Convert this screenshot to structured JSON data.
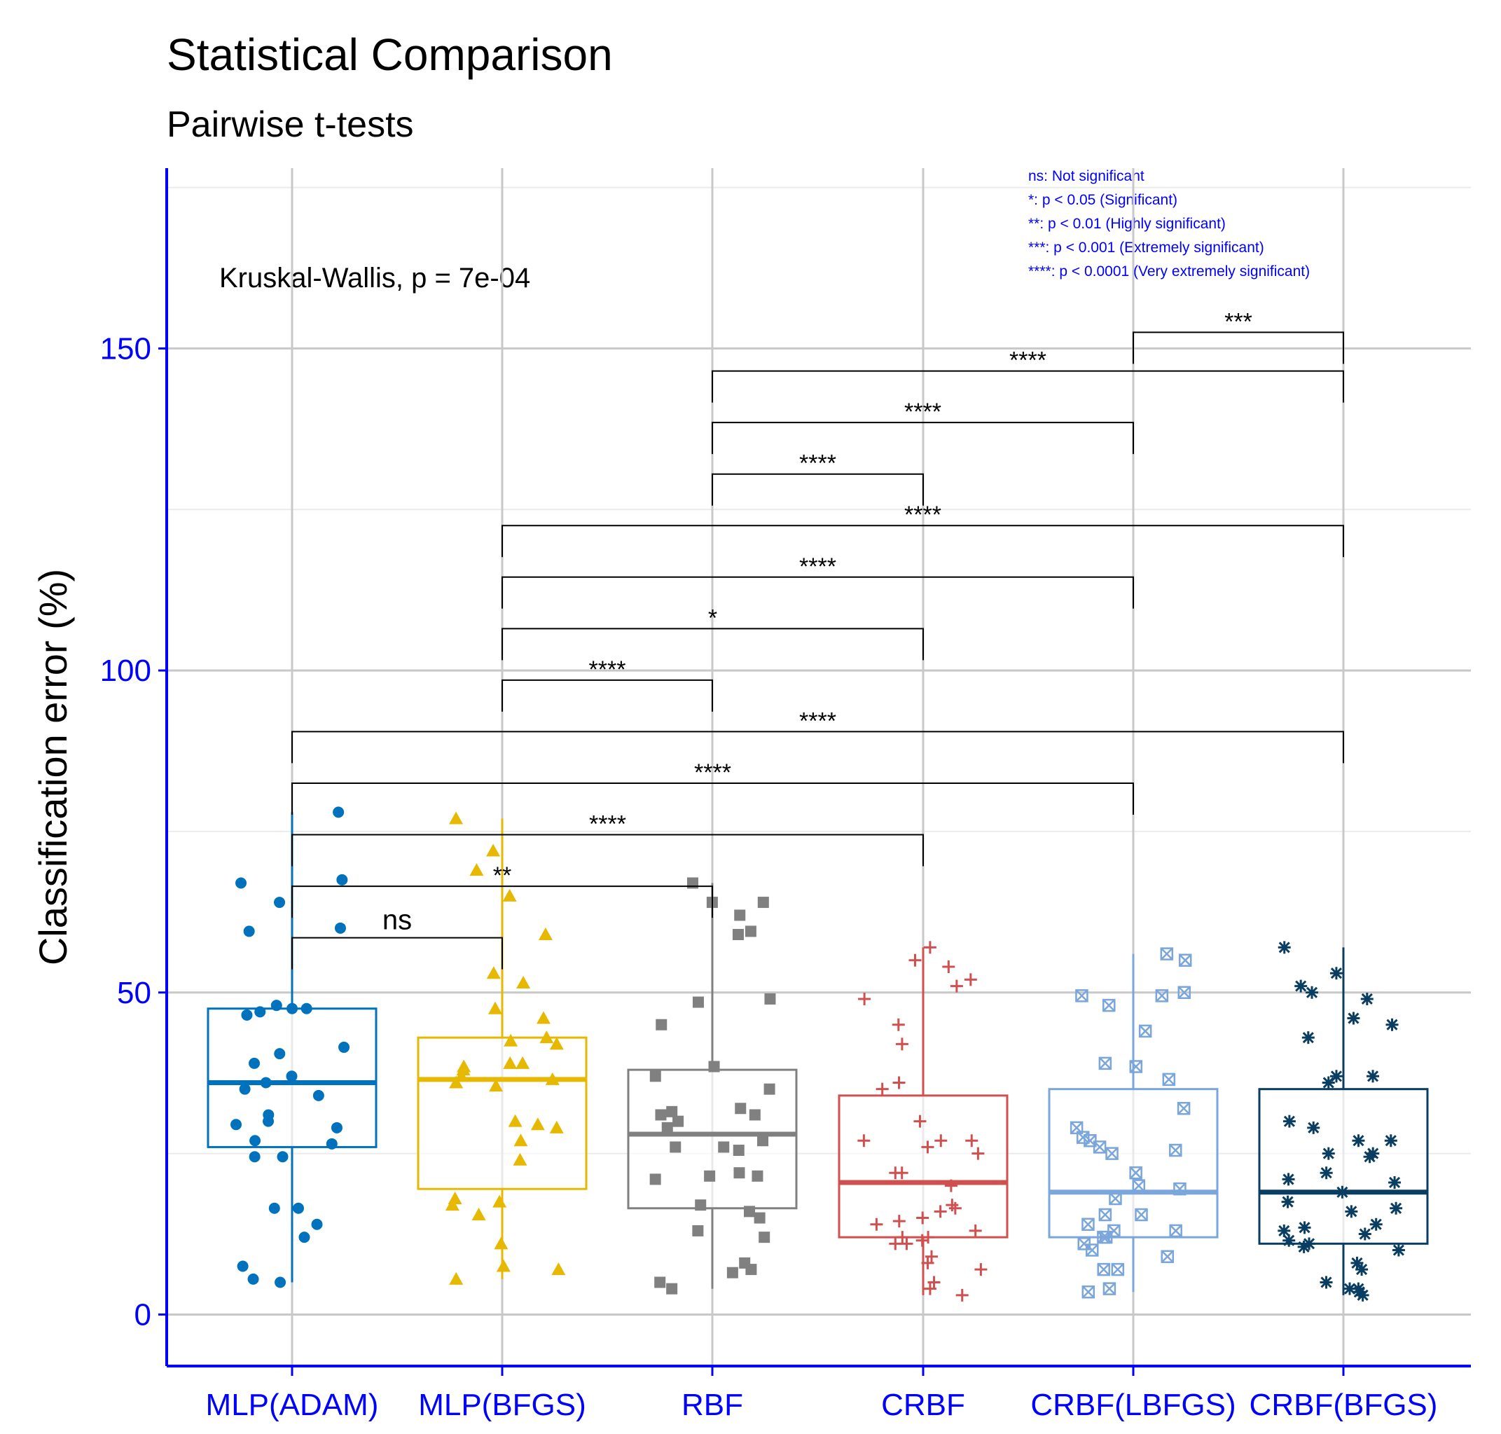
{
  "chart_data": {
    "type": "box",
    "title": "Statistical Comparison",
    "subtitle": "Pairwise t-tests",
    "ylabel": "Classification error (%)",
    "xlabel": "",
    "ylim": [
      -8,
      178
    ],
    "yticks": [
      0,
      50,
      100,
      150
    ],
    "grid": true,
    "annotation": "Kruskal-Wallis, p = 7e-04",
    "legend_lines": [
      "ns: Not significant",
      "*: p < 0.05 (Significant)",
      "**: p < 0.01 (Highly significant)",
      "***: p < 0.001 (Extremely significant)",
      "****: p < 0.0001 (Very extremely significant)"
    ],
    "colors": {
      "axis": "#0000ff",
      "grid_major": "#c8c8c8",
      "grid_minor": "#ebebeb",
      "bracket": "#000000"
    },
    "groups": [
      {
        "name": "MLP(ADAM)",
        "color": "#0072bd",
        "shape": "circle",
        "box": {
          "q1": 26,
          "median": 36,
          "q3": 47.5,
          "lower": 5,
          "upper": 78
        },
        "points": [
          78,
          67.5,
          67,
          64,
          60,
          59.5,
          48,
          47.5,
          47.5,
          47,
          46.5,
          41.5,
          40.5,
          39,
          37,
          36,
          35,
          34,
          31,
          30,
          29.5,
          29,
          27,
          26.5,
          24.5,
          24.5,
          16.5,
          16.5,
          14,
          12,
          7.5,
          5.5,
          5
        ]
      },
      {
        "name": "MLP(BFGS)",
        "color": "#e6b800",
        "shape": "triangle",
        "box": {
          "q1": 19.5,
          "median": 36.5,
          "q3": 43,
          "lower": 5.5,
          "upper": 77
        },
        "points": [
          77,
          72,
          69,
          65,
          59,
          53,
          51.5,
          47.5,
          46,
          43,
          42.5,
          42,
          39,
          39,
          38.5,
          38,
          37,
          36.5,
          36,
          35.5,
          30,
          29.5,
          29,
          27,
          24,
          18,
          17.5,
          17,
          15.5,
          11,
          7.5,
          7,
          5.5
        ]
      },
      {
        "name": "RBF",
        "color": "#808080",
        "shape": "square",
        "box": {
          "q1": 16.5,
          "median": 28,
          "q3": 38,
          "lower": 4,
          "upper": 67
        },
        "points": [
          67,
          64,
          64,
          62,
          59.5,
          59,
          49,
          48.5,
          45,
          38.5,
          37,
          35,
          32,
          31.5,
          31,
          31,
          30,
          29,
          27,
          26,
          26,
          25.5,
          22,
          21.5,
          21.5,
          21,
          17,
          16,
          15,
          13,
          12,
          8,
          7,
          6.5,
          5,
          4
        ]
      },
      {
        "name": "CRBF",
        "color": "#d05050",
        "shape": "plus",
        "box": {
          "q1": 12,
          "median": 20.5,
          "q3": 34,
          "lower": 3,
          "upper": 57
        },
        "points": [
          57,
          55,
          54,
          52,
          51,
          49,
          45,
          42,
          36,
          35,
          30,
          27,
          27,
          27,
          26,
          25,
          22,
          22,
          20,
          17,
          16.5,
          16,
          15,
          14.5,
          14,
          13,
          12,
          12,
          11.5,
          11,
          11,
          9,
          8,
          7,
          5,
          4,
          3
        ]
      },
      {
        "name": "CRBF(LBFGS)",
        "color": "#7aa6dc",
        "shape": "square-x",
        "box": {
          "q1": 12,
          "median": 19,
          "q3": 35,
          "lower": 3.5,
          "upper": 56
        },
        "points": [
          56,
          55,
          50,
          49.5,
          49.5,
          48,
          44,
          39,
          38.5,
          36.5,
          32,
          29,
          27.5,
          27,
          26,
          25.5,
          25,
          22,
          20,
          19.5,
          18,
          15.5,
          15.5,
          14,
          13,
          13,
          12,
          12,
          11,
          10,
          9,
          7,
          7,
          4,
          3.5
        ]
      },
      {
        "name": "CRBF(BFGS)",
        "color": "#0a3d62",
        "shape": "asterisk",
        "box": {
          "q1": 11,
          "median": 19,
          "q3": 35,
          "lower": 3,
          "upper": 57
        },
        "points": [
          57,
          53,
          51,
          50,
          49,
          46,
          45,
          43,
          37,
          37,
          36,
          30,
          29,
          27,
          27,
          25,
          25,
          24.5,
          22,
          21,
          20.5,
          19,
          17.5,
          16.5,
          16,
          14,
          13.5,
          13,
          12.5,
          11.5,
          11,
          10.5,
          10,
          8,
          7,
          5,
          4,
          4,
          3.5,
          3
        ]
      }
    ],
    "comparisons": [
      {
        "a": 0,
        "b": 1,
        "label": "ns",
        "y": 58.5
      },
      {
        "a": 0,
        "b": 2,
        "label": "**",
        "y": 66.5
      },
      {
        "a": 0,
        "b": 3,
        "label": "****",
        "y": 74.5
      },
      {
        "a": 0,
        "b": 4,
        "label": "****",
        "y": 82.5
      },
      {
        "a": 0,
        "b": 5,
        "label": "****",
        "y": 90.5
      },
      {
        "a": 1,
        "b": 2,
        "label": "****",
        "y": 98.5
      },
      {
        "a": 1,
        "b": 3,
        "label": "*",
        "y": 106.5
      },
      {
        "a": 1,
        "b": 4,
        "label": "****",
        "y": 114.5
      },
      {
        "a": 1,
        "b": 5,
        "label": "****",
        "y": 122.5
      },
      {
        "a": 2,
        "b": 3,
        "label": "****",
        "y": 130.5
      },
      {
        "a": 2,
        "b": 4,
        "label": "****",
        "y": 138.5
      },
      {
        "a": 2,
        "b": 5,
        "label": "****",
        "y": 146.5
      },
      {
        "a": 4,
        "b": 5,
        "label": "***",
        "y": 152.5
      }
    ]
  }
}
